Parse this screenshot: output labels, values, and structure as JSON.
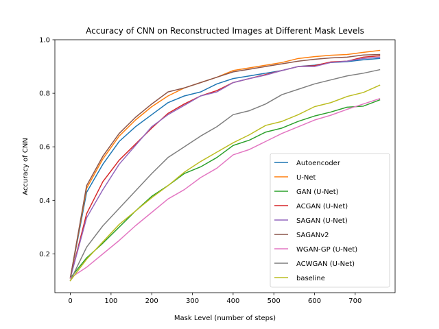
{
  "chart_data": {
    "type": "line",
    "title": "Accuracy of CNN on Reconstructed Images at Different Mask Levels",
    "xlabel": "Mask Level (number of steps)",
    "ylabel": "Accuracy of CNN",
    "xlim": [
      -38,
      798
    ],
    "ylim": [
      0.055,
      1.0
    ],
    "xticks": [
      0,
      100,
      200,
      300,
      400,
      500,
      600,
      700
    ],
    "yticks": [
      0.2,
      0.4,
      0.6,
      0.8,
      1.0
    ],
    "ytick_labels": [
      "0.2",
      "0.4",
      "0.6",
      "0.8",
      "1.0"
    ],
    "grid": false,
    "legend_position": "lower-right",
    "x": [
      0,
      40,
      80,
      120,
      160,
      200,
      240,
      280,
      320,
      360,
      400,
      440,
      480,
      520,
      560,
      600,
      640,
      680,
      720,
      760
    ],
    "series": [
      {
        "name": "Autoencoder",
        "color": "#1f77b4",
        "values": [
          0.11,
          0.43,
          0.535,
          0.62,
          0.675,
          0.72,
          0.765,
          0.79,
          0.805,
          0.835,
          0.855,
          0.865,
          0.875,
          0.885,
          0.9,
          0.905,
          0.915,
          0.918,
          0.925,
          0.93
        ]
      },
      {
        "name": "U-Net",
        "color": "#ff7f0e",
        "values": [
          0.11,
          0.445,
          0.555,
          0.64,
          0.7,
          0.75,
          0.79,
          0.82,
          0.84,
          0.86,
          0.885,
          0.895,
          0.905,
          0.915,
          0.93,
          0.937,
          0.942,
          0.945,
          0.953,
          0.96
        ]
      },
      {
        "name": "GAN (U-Net)",
        "color": "#2ca02c",
        "values": [
          0.11,
          0.185,
          0.24,
          0.3,
          0.36,
          0.415,
          0.455,
          0.5,
          0.525,
          0.56,
          0.605,
          0.625,
          0.655,
          0.67,
          0.695,
          0.715,
          0.73,
          0.748,
          0.752,
          0.775
        ]
      },
      {
        "name": "ACGAN (U-Net)",
        "color": "#d62728",
        "values": [
          0.11,
          0.35,
          0.47,
          0.55,
          0.61,
          0.67,
          0.725,
          0.76,
          0.79,
          0.81,
          0.84,
          0.855,
          0.87,
          0.885,
          0.9,
          0.903,
          0.917,
          0.92,
          0.935,
          0.94
        ]
      },
      {
        "name": "SAGAN (U-Net)",
        "color": "#9467bd",
        "values": [
          0.11,
          0.335,
          0.44,
          0.535,
          0.605,
          0.675,
          0.72,
          0.755,
          0.79,
          0.805,
          0.84,
          0.855,
          0.868,
          0.885,
          0.9,
          0.9,
          0.915,
          0.92,
          0.93,
          0.935
        ]
      },
      {
        "name": "SAGANv2",
        "color": "#8c564b",
        "values": [
          0.11,
          0.455,
          0.565,
          0.65,
          0.71,
          0.76,
          0.805,
          0.82,
          0.84,
          0.86,
          0.88,
          0.89,
          0.9,
          0.91,
          0.92,
          0.927,
          0.932,
          0.935,
          0.943,
          0.945
        ]
      },
      {
        "name": "WGAN-GP (U-Net)",
        "color": "#e377c2",
        "values": [
          0.11,
          0.15,
          0.2,
          0.25,
          0.305,
          0.355,
          0.405,
          0.44,
          0.485,
          0.52,
          0.57,
          0.59,
          0.62,
          0.65,
          0.675,
          0.7,
          0.718,
          0.74,
          0.76,
          0.78
        ]
      },
      {
        "name": "ACWGAN (U-Net)",
        "color": "#7f7f7f",
        "values": [
          0.1,
          0.225,
          0.305,
          0.37,
          0.435,
          0.5,
          0.56,
          0.6,
          0.64,
          0.675,
          0.72,
          0.735,
          0.76,
          0.795,
          0.815,
          0.835,
          0.85,
          0.865,
          0.875,
          0.888
        ]
      },
      {
        "name": "baseline",
        "color": "#bcbd22",
        "values": [
          0.1,
          0.18,
          0.245,
          0.31,
          0.36,
          0.41,
          0.455,
          0.505,
          0.545,
          0.58,
          0.615,
          0.645,
          0.68,
          0.695,
          0.72,
          0.75,
          0.765,
          0.788,
          0.803,
          0.83
        ]
      }
    ]
  }
}
